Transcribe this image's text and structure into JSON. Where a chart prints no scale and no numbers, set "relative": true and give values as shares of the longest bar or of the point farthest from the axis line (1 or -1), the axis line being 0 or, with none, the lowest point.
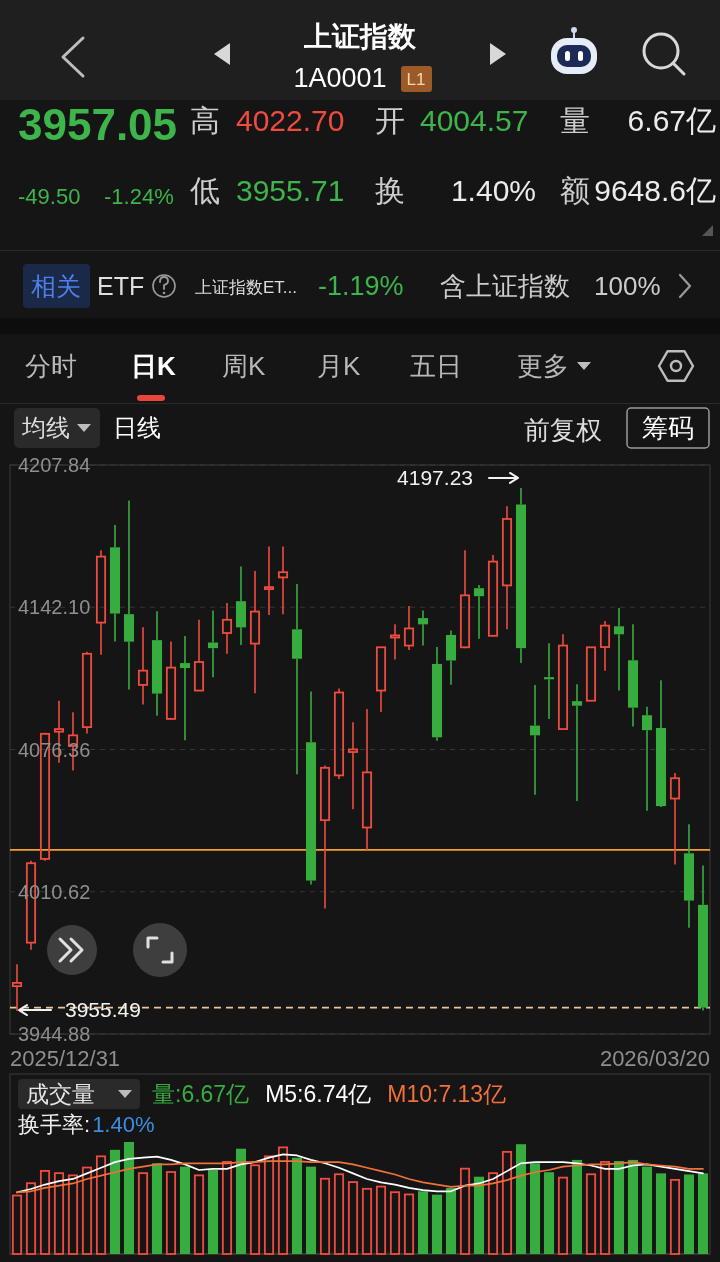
{
  "chart_data": [
    {
      "type": "other",
      "title": "上证指数",
      "subtitle": "1A0001",
      "annotations": [
        "L1",
        "3957.05",
        "高",
        "4022.70",
        "开",
        "4004.57",
        "量",
        "6.67亿",
        "-49.50",
        "-1.24%",
        "低",
        "3955.71",
        "换",
        "1.40%",
        "额",
        "9648.6亿",
        "相关",
        "ETF",
        "上证指数ET...",
        "-1.19%",
        "含上证指数",
        "100%",
        "分时",
        "日K",
        "周K",
        "月K",
        "五日",
        "更多",
        "均线",
        "日线",
        "前复权",
        "筹码"
      ]
    },
    {
      "type": "candlestick",
      "categories": [
        null,
        null,
        null,
        null,
        null,
        null,
        null,
        null,
        null,
        null,
        null,
        null,
        null,
        null,
        null,
        null,
        null,
        null,
        null,
        null,
        null,
        null,
        null,
        null,
        null,
        null,
        null,
        null,
        null,
        null,
        null,
        null,
        null,
        null,
        null,
        null,
        null,
        null,
        null,
        null,
        null,
        null,
        null,
        null,
        null,
        null,
        null,
        null,
        null,
        null
      ],
      "ohlc": [
        [
          3967.0,
          3977.1,
          3955.49,
          3968.5
        ],
        [
          3987.1,
          4025.0,
          3983.8,
          4023.8
        ],
        [
          4025.8,
          4084.1,
          4025.0,
          4083.6
        ],
        [
          4084.6,
          4098.9,
          4070.2,
          4085.8
        ],
        [
          4078.0,
          4093.6,
          4066.7,
          4082.9
        ],
        [
          4086.7,
          4121.5,
          4083.7,
          4120.6
        ],
        [
          4135.0,
          4168.4,
          4120.1,
          4165.5
        ],
        [
          4169.8,
          4180.1,
          4126.3,
          4139.2
        ],
        [
          4138.9,
          4191.4,
          4104.1,
          4126.2
        ],
        [
          4106.2,
          4132.8,
          4097.1,
          4112.8
        ],
        [
          4126.9,
          4140.3,
          4091.9,
          4102.2
        ],
        [
          4090.5,
          4126.3,
          4090.2,
          4114.2
        ],
        [
          4116.3,
          4128.8,
          4080.6,
          4114.0
        ],
        [
          4103.6,
          4136.3,
          4103.6,
          4116.8
        ],
        [
          4125.8,
          4140.6,
          4109.8,
          4123.2
        ],
        [
          4130.2,
          4144.1,
          4120.6,
          4136.3
        ],
        [
          4144.9,
          4160.9,
          4124.6,
          4132.8
        ],
        [
          4125.3,
          4158.9,
          4102.3,
          4140.1
        ],
        [
          4150.5,
          4170.2,
          4138.5,
          4151.4
        ],
        [
          4155.9,
          4170.2,
          4138.9,
          4158.3
        ],
        [
          4131.9,
          4152.8,
          4064.9,
          4118.3
        ],
        [
          4079.7,
          4103.2,
          4014.0,
          4015.8
        ],
        [
          4043.7,
          4069.0,
          4002.9,
          4067.9
        ],
        [
          4064.4,
          4104.6,
          4062.7,
          4102.7
        ],
        [
          4075.2,
          4089.0,
          4048.8,
          4076.4
        ],
        [
          4040.3,
          4095.1,
          4029.8,
          4065.8
        ],
        [
          4103.6,
          4123.6,
          4093.7,
          4123.6
        ],
        [
          4128.1,
          4134.2,
          4118.0,
          4129.1
        ],
        [
          4124.4,
          4142.7,
          4122.3,
          4132.3
        ],
        [
          4137.1,
          4140.6,
          4124.4,
          4134.2
        ],
        [
          4115.9,
          4123.7,
          4080.4,
          4082.0
        ],
        [
          4129.3,
          4131.4,
          4106.3,
          4117.5
        ],
        [
          4123.6,
          4168.4,
          4123.2,
          4147.6
        ],
        [
          4150.9,
          4152.4,
          4127.6,
          4147.2
        ],
        [
          4128.9,
          4166.2,
          4128.9,
          4163.2
        ],
        [
          4152.2,
          4188.8,
          4131.9,
          4182.9
        ],
        [
          4189.6,
          4197.23,
          4116.3,
          4123.2
        ],
        [
          4087.4,
          4106.2,
          4055.4,
          4082.9
        ],
        [
          4109.8,
          4125.5,
          4090.5,
          4108.8
        ],
        [
          4085.8,
          4129.6,
          4085.8,
          4124.4
        ],
        [
          4098.7,
          4106.5,
          4052.6,
          4096.6
        ],
        [
          4098.9,
          4123.6,
          4098.9,
          4123.6
        ],
        [
          4123.7,
          4135.7,
          4112.8,
          4133.6
        ],
        [
          4133.3,
          4141.8,
          4103.6,
          4129.6
        ],
        [
          4117.6,
          4134.3,
          4087.0,
          4095.7
        ],
        [
          4092.2,
          4096.1,
          4048.1,
          4085.3
        ],
        [
          4086.3,
          4108.4,
          4049.8,
          4050.2
        ],
        [
          4053.7,
          4065.5,
          4023.2,
          4063.1
        ],
        [
          4028.4,
          4041.8,
          3994.0,
          4006.55
        ],
        [
          4004.57,
          4022.7,
          3955.71,
          3957.05
        ]
      ],
      "colors": [
        "#ef4b3f",
        "#ef4b3f",
        "#ef4b3f",
        "#ef4b3f",
        "#ef4b3f",
        "#ef4b3f",
        "#ef4b3f",
        "#37ad3f",
        "#37ad3f",
        "#ef4b3f",
        "#37ad3f",
        "#ef4b3f",
        "#37ad3f",
        "#ef4b3f",
        "#37ad3f",
        "#ef4b3f",
        "#37ad3f",
        "#ef4b3f",
        "#ef4b3f",
        "#ef4b3f",
        "#37ad3f",
        "#37ad3f",
        "#ef4b3f",
        "#ef4b3f",
        "#ef4b3f",
        "#ef4b3f",
        "#ef4b3f",
        "#ef4b3f",
        "#ef4b3f",
        "#37ad3f",
        "#37ad3f",
        "#37ad3f",
        "#ef4b3f",
        "#37ad3f",
        "#ef4b3f",
        "#ef4b3f",
        "#37ad3f",
        "#37ad3f",
        "#37ad3f",
        "#ef4b3f",
        "#37ad3f",
        "#ef4b3f",
        "#ef4b3f",
        "#37ad3f",
        "#37ad3f",
        "#37ad3f",
        "#37ad3f",
        "#ef4b3f",
        "#37ad3f",
        "#37ad3f"
      ],
      "ylim": [
        3944.88,
        4207.84
      ],
      "yticks": [
        3944.88,
        4010.62,
        4076.36,
        {
          "value": 4142.1,
          "label": "4142.10"
        },
        4207.84
      ],
      "grid": "y",
      "ref_lines": [
        {
          "axis": "y",
          "value": 4030,
          "color": "#f0a030",
          "line_style": "solid"
        },
        {
          "axis": "y",
          "value": 3957.05,
          "color": "#e8c89a",
          "line_style": "dashed"
        }
      ],
      "annotations": [
        "4197.23",
        "3955.49",
        "2025/12/31",
        "2026/03/20"
      ]
    },
    {
      "type": "bar",
      "relative": true,
      "categories": [
        null,
        null,
        null,
        null,
        null,
        null,
        null,
        null,
        null,
        null,
        null,
        null,
        null,
        null,
        null,
        null,
        null,
        null,
        null,
        null,
        null,
        null,
        null,
        null,
        null,
        null,
        null,
        null,
        null,
        null,
        null,
        null,
        null,
        null,
        null,
        null,
        null,
        null,
        null,
        null,
        null,
        null,
        null,
        null,
        null,
        null,
        null,
        null,
        null,
        null
      ],
      "annotations": [
        "成交量",
        "量:6.67亿",
        "换手率:",
        "1.40%"
      ],
      "series": [
        {
          "values": [
            0.53,
            0.64,
            0.75,
            0.73,
            0.71,
            0.78,
            0.88,
            0.93,
            1,
            0.73,
            0.81,
            0.74,
            0.78,
            0.71,
            0.75,
            0.83,
            0.94,
            0.8,
            0.88,
            0.96,
            0.86,
            0.78,
            0.68,
            0.72,
            0.65,
            0.59,
            0.61,
            0.56,
            0.54,
            0.56,
            0.53,
            0.59,
            0.77,
            0.69,
            0.73,
            0.92,
            0.98,
            0.81,
            0.73,
            0.69,
            0.84,
            0.72,
            0.83,
            0.83,
            0.84,
            0.78,
            0.72,
            0.67,
            0.71,
            0.72
          ],
          "colors": [
            "#ef4b3f",
            "#ef4b3f",
            "#ef4b3f",
            "#ef4b3f",
            "#ef4b3f",
            "#ef4b3f",
            "#ef4b3f",
            "#37ad3f",
            "#37ad3f",
            "#ef4b3f",
            "#37ad3f",
            "#ef4b3f",
            "#37ad3f",
            "#ef4b3f",
            "#37ad3f",
            "#ef4b3f",
            "#37ad3f",
            "#ef4b3f",
            "#ef4b3f",
            "#ef4b3f",
            "#37ad3f",
            "#37ad3f",
            "#ef4b3f",
            "#ef4b3f",
            "#ef4b3f",
            "#ef4b3f",
            "#ef4b3f",
            "#ef4b3f",
            "#ef4b3f",
            "#37ad3f",
            "#37ad3f",
            "#37ad3f",
            "#ef4b3f",
            "#37ad3f",
            "#ef4b3f",
            "#ef4b3f",
            "#37ad3f",
            "#37ad3f",
            "#37ad3f",
            "#ef4b3f",
            "#37ad3f",
            "#ef4b3f",
            "#ef4b3f",
            "#37ad3f",
            "#37ad3f",
            "#37ad3f",
            "#37ad3f",
            "#ef4b3f",
            "#37ad3f",
            "#37ad3f"
          ]
        },
        {
          "type": "line",
          "name": "M5:6.74亿",
          "color": "#ffffff",
          "values": [
            0.55,
            0.58,
            0.62,
            0.65,
            0.67,
            0.72,
            0.77,
            0.82,
            0.85,
            0.86,
            0.87,
            0.84,
            0.8,
            0.75,
            0.76,
            0.76,
            0.8,
            0.82,
            0.86,
            0.89,
            0.88,
            0.84,
            0.81,
            0.77,
            0.72,
            0.67,
            0.64,
            0.62,
            0.59,
            0.57,
            0.56,
            0.56,
            0.61,
            0.63,
            0.67,
            0.74,
            0.81,
            0.82,
            0.82,
            0.82,
            0.81,
            0.79,
            0.76,
            0.76,
            0.79,
            0.8,
            0.78,
            0.76,
            0.74,
            0.72
          ]
        },
        {
          "type": "line",
          "name": "M10:7.13亿",
          "color": "#f2703a",
          "values": [
            0.55,
            0.56,
            0.59,
            0.61,
            0.63,
            0.67,
            0.7,
            0.73,
            0.76,
            0.78,
            0.8,
            0.8,
            0.81,
            0.81,
            0.81,
            0.81,
            0.82,
            0.82,
            0.83,
            0.83,
            0.83,
            0.82,
            0.82,
            0.82,
            0.8,
            0.77,
            0.74,
            0.71,
            0.67,
            0.64,
            0.62,
            0.6,
            0.61,
            0.61,
            0.63,
            0.66,
            0.7,
            0.73,
            0.75,
            0.78,
            0.79,
            0.8,
            0.8,
            0.81,
            0.82,
            0.8,
            0.79,
            0.78,
            0.76,
            0.76
          ]
        }
      ]
    }
  ]
}
